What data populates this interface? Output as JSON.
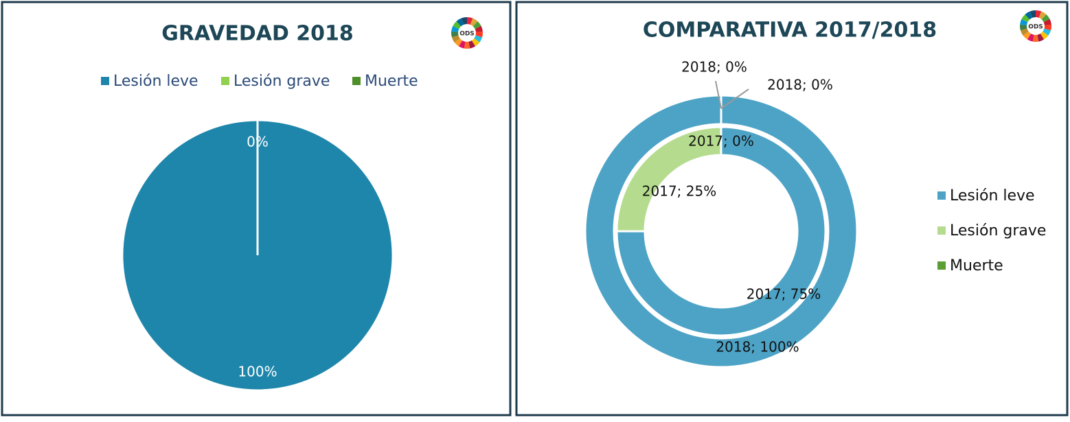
{
  "logo_text": "ODS",
  "chart_data": [
    {
      "type": "pie",
      "title": "GRAVEDAD 2018",
      "categories": [
        "Lesión leve",
        "Lesión grave",
        "Muerte"
      ],
      "colors": [
        "#1e86ab",
        "#92d050",
        "#4e8f2a"
      ],
      "values": [
        100,
        0,
        0
      ],
      "value_labels": [
        "100%",
        "0%",
        null
      ],
      "legend": "top"
    },
    {
      "type": "doughnut",
      "title": "COMPARATIVA 2017/2018",
      "categories": [
        "Lesión leve",
        "Lesión grave",
        "Muerte"
      ],
      "colors": [
        "#4da3c6",
        "#b5dc8e",
        "#5a9e34"
      ],
      "series": [
        {
          "values": [
            100,
            0,
            0
          ],
          "value_labels": [
            "2018; 100%",
            "2018; 0%",
            "2018; 0%"
          ]
        },
        {
          "values": [
            75,
            25,
            0
          ],
          "value_labels": [
            "2017; 75%",
            "2017; 25%",
            "2017; 0%"
          ]
        }
      ],
      "legend": "right"
    }
  ]
}
